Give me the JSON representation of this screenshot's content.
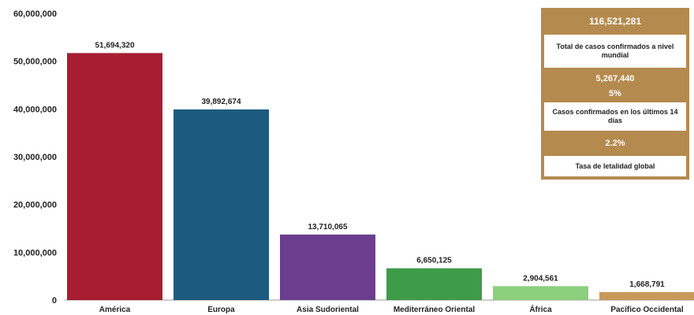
{
  "chart_data": {
    "type": "bar",
    "title": "",
    "categories": [
      "América",
      "Europa",
      "Asia Sudoriental",
      "Mediterráneo Oriental",
      "África",
      "Pacífico Occidental"
    ],
    "values": [
      51694320,
      39892674,
      13710065,
      6650125,
      2904561,
      1668791
    ],
    "data_labels": [
      "51,694,320",
      "39,892,674",
      "13,710,065",
      "6,650,125",
      "2,904,561",
      "1,668,791"
    ],
    "bar_colors": [
      "#a71d31",
      "#1d5b7e",
      "#6a3d8e",
      "#3e9b48",
      "#8ccf7c",
      "#c99a57"
    ],
    "y_ticks": [
      "0",
      "10,000,000",
      "20,000,000",
      "30,000,000",
      "40,000,000",
      "50,000,000",
      "60,000,000"
    ],
    "ylim": [
      0,
      60000000
    ],
    "xlabel": "",
    "ylabel": "",
    "grid": false,
    "legend": "none"
  },
  "summary": {
    "total_value": "116,521,281",
    "total_label": "Total de casos confirmados a nivel mundial",
    "recent_value": "5,267,440",
    "recent_pct": "5%",
    "recent_label": "Casos confirmados en los últimos 14 días",
    "lethality_value": "2.2%",
    "lethality_label": "Tasa de letalidad global",
    "panel_color": "#b48a4e"
  }
}
